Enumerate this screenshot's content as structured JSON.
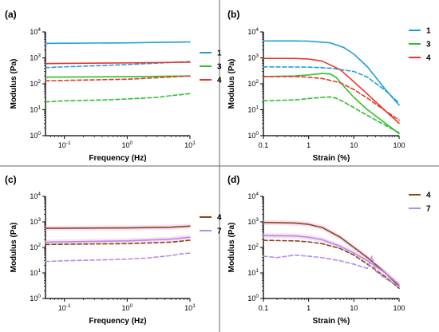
{
  "colors": {
    "blue": "#1ea0dc",
    "green": "#2dbf2d",
    "red": "#e8342a",
    "brown": "#8b4513",
    "purple": "#b58ae8",
    "pink_band": "#f3c4ea",
    "frame": "#000000",
    "divider": "#6a6a6a"
  },
  "chart_data": [
    {
      "panel": "(a)",
      "type": "line",
      "ylabel": "Modulus (Pa)",
      "xlabel": "Frequency (Hz)",
      "xscale": "log",
      "yscale": "log",
      "xlim": [
        0.05,
        10
      ],
      "ylim": [
        1,
        10000
      ],
      "xticks": [
        {
          "v": 0.1,
          "b": "10",
          "e": "-1"
        },
        {
          "v": 1,
          "b": "10",
          "e": "0"
        },
        {
          "v": 10,
          "b": "10",
          "e": "1"
        }
      ],
      "yticks": [
        {
          "v": 1,
          "b": "10",
          "e": "0"
        },
        {
          "v": 10,
          "b": "10",
          "e": "1"
        },
        {
          "v": 100,
          "b": "10",
          "e": "2"
        },
        {
          "v": 1000,
          "b": "10",
          "e": "3"
        },
        {
          "v": 10000,
          "b": "10",
          "e": "4"
        }
      ],
      "legend": [
        {
          "label": "1",
          "color": "blue"
        },
        {
          "label": "3",
          "color": "green"
        },
        {
          "label": "4",
          "color": "red"
        }
      ],
      "legend_position": "right",
      "series": [
        {
          "name": "1",
          "color": "blue",
          "style": "solid",
          "points": [
            [
              0.05,
              3600
            ],
            [
              0.1,
              3650
            ],
            [
              1,
              3800
            ],
            [
              10,
              4100
            ]
          ]
        },
        {
          "name": "1",
          "color": "blue",
          "style": "dashed",
          "points": [
            [
              0.05,
              420
            ],
            [
              0.1,
              450
            ],
            [
              1,
              550
            ],
            [
              10,
              720
            ]
          ]
        },
        {
          "name": "3",
          "color": "green",
          "style": "solid",
          "points": [
            [
              0.05,
              180
            ],
            [
              0.1,
              182
            ],
            [
              1,
              188
            ],
            [
              10,
              200
            ]
          ]
        },
        {
          "name": "3",
          "color": "green",
          "style": "dashed",
          "points": [
            [
              0.05,
              20
            ],
            [
              0.1,
              22
            ],
            [
              0.5,
              24
            ],
            [
              1,
              26
            ],
            [
              3,
              30
            ],
            [
              5,
              35
            ],
            [
              7,
              38
            ],
            [
              10,
              42
            ]
          ]
        },
        {
          "name": "4",
          "color": "red",
          "style": "solid",
          "points": [
            [
              0.05,
              600
            ],
            [
              0.1,
              610
            ],
            [
              1,
              640
            ],
            [
              10,
              680
            ]
          ]
        },
        {
          "name": "4",
          "color": "red",
          "style": "dashed",
          "points": [
            [
              0.05,
              130
            ],
            [
              0.1,
              135
            ],
            [
              1,
              150
            ],
            [
              10,
              200
            ]
          ]
        }
      ]
    },
    {
      "panel": "(b)",
      "type": "line",
      "ylabel": "Modulus (Pa)",
      "xlabel": "Strain (%)",
      "xscale": "log",
      "yscale": "log",
      "xlim": [
        0.1,
        100
      ],
      "ylim": [
        1,
        10000
      ],
      "xticks": [
        {
          "v": 0.1,
          "t": "0.1"
        },
        {
          "v": 1,
          "t": "1"
        },
        {
          "v": 10,
          "t": "10"
        },
        {
          "v": 100,
          "t": "100"
        }
      ],
      "yticks": [
        {
          "v": 1,
          "b": "10",
          "e": "0"
        },
        {
          "v": 10,
          "b": "10",
          "e": "1"
        },
        {
          "v": 100,
          "b": "10",
          "e": "2"
        },
        {
          "v": 1000,
          "b": "10",
          "e": "3"
        },
        {
          "v": 10000,
          "b": "10",
          "e": "4"
        }
      ],
      "legend": [
        {
          "label": "1",
          "color": "blue"
        },
        {
          "label": "3",
          "color": "green"
        },
        {
          "label": "4",
          "color": "red"
        }
      ],
      "legend_position": "top-right",
      "series": [
        {
          "name": "1",
          "color": "blue",
          "style": "solid",
          "points": [
            [
              0.1,
              4500
            ],
            [
              0.5,
              4500
            ],
            [
              1,
              4400
            ],
            [
              3,
              3800
            ],
            [
              6,
              2500
            ],
            [
              10,
              1400
            ],
            [
              20,
              450
            ],
            [
              50,
              60
            ],
            [
              100,
              15
            ]
          ]
        },
        {
          "name": "1",
          "color": "blue",
          "style": "dashed",
          "points": [
            [
              0.1,
              450
            ],
            [
              1,
              440
            ],
            [
              3,
              400
            ],
            [
              10,
              300
            ],
            [
              20,
              180
            ],
            [
              50,
              55
            ],
            [
              100,
              18
            ]
          ]
        },
        {
          "name": "3",
          "color": "green",
          "style": "solid",
          "points": [
            [
              0.1,
              190
            ],
            [
              0.5,
              200
            ],
            [
              1,
              220
            ],
            [
              2,
              250
            ],
            [
              3,
              240
            ],
            [
              4,
              180
            ],
            [
              6,
              80
            ],
            [
              10,
              30
            ],
            [
              20,
              10
            ],
            [
              50,
              3
            ],
            [
              100,
              1.2
            ]
          ]
        },
        {
          "name": "3",
          "color": "green",
          "style": "dashed",
          "points": [
            [
              0.1,
              22
            ],
            [
              0.5,
              24
            ],
            [
              1,
              27
            ],
            [
              2,
              30
            ],
            [
              3,
              31
            ],
            [
              4,
              28
            ],
            [
              6,
              20
            ],
            [
              10,
              12
            ],
            [
              20,
              6
            ],
            [
              50,
              2.5
            ],
            [
              100,
              1.3
            ]
          ]
        },
        {
          "name": "4",
          "color": "red",
          "style": "solid",
          "points": [
            [
              0.1,
              950
            ],
            [
              0.5,
              950
            ],
            [
              1,
              900
            ],
            [
              2,
              750
            ],
            [
              5,
              350
            ],
            [
              10,
              120
            ],
            [
              20,
              40
            ],
            [
              50,
              9
            ],
            [
              100,
              3
            ]
          ]
        },
        {
          "name": "4",
          "color": "red",
          "style": "dashed",
          "points": [
            [
              0.1,
              190
            ],
            [
              0.5,
              190
            ],
            [
              1,
              180
            ],
            [
              2,
              160
            ],
            [
              5,
              110
            ],
            [
              10,
              60
            ],
            [
              20,
              28
            ],
            [
              50,
              9
            ],
            [
              100,
              4
            ]
          ]
        }
      ]
    },
    {
      "panel": "(c)",
      "type": "line",
      "ylabel": "Modulus (Pa)",
      "xlabel": "Frequency (Hz)",
      "xscale": "log",
      "yscale": "log",
      "xlim": [
        0.05,
        10
      ],
      "ylim": [
        1,
        10000
      ],
      "xticks": [
        {
          "v": 0.1,
          "b": "10",
          "e": "-1"
        },
        {
          "v": 1,
          "b": "10",
          "e": "0"
        },
        {
          "v": 10,
          "b": "10",
          "e": "1"
        }
      ],
      "yticks": [
        {
          "v": 1,
          "b": "10",
          "e": "0"
        },
        {
          "v": 10,
          "b": "10",
          "e": "1"
        },
        {
          "v": 100,
          "b": "10",
          "e": "2"
        },
        {
          "v": 1000,
          "b": "10",
          "e": "3"
        },
        {
          "v": 10000,
          "b": "10",
          "e": "4"
        }
      ],
      "legend": [
        {
          "label": "4",
          "color": "brown"
        },
        {
          "label": "7",
          "color": "purple"
        }
      ],
      "legend_position": "right",
      "series": [
        {
          "name": "4",
          "color": "brown",
          "style": "solid",
          "band": true,
          "points": [
            [
              0.05,
              560
            ],
            [
              0.1,
              565
            ],
            [
              1,
              580
            ],
            [
              5,
              620
            ],
            [
              10,
              680
            ]
          ]
        },
        {
          "name": "4",
          "color": "brown",
          "style": "dashed",
          "points": [
            [
              0.05,
              130
            ],
            [
              0.1,
              133
            ],
            [
              1,
              140
            ],
            [
              5,
              160
            ],
            [
              10,
              190
            ]
          ]
        },
        {
          "name": "7",
          "color": "purple",
          "style": "solid",
          "band": true,
          "points": [
            [
              0.05,
              160
            ],
            [
              0.1,
              165
            ],
            [
              1,
              180
            ],
            [
              5,
              210
            ],
            [
              10,
              250
            ]
          ]
        },
        {
          "name": "7",
          "color": "purple",
          "style": "dashed",
          "points": [
            [
              0.05,
              28
            ],
            [
              0.1,
              30
            ],
            [
              0.5,
              33
            ],
            [
              1,
              35
            ],
            [
              2,
              38
            ],
            [
              3,
              42
            ],
            [
              5,
              48
            ],
            [
              7,
              55
            ],
            [
              10,
              60
            ]
          ]
        }
      ]
    },
    {
      "panel": "(d)",
      "type": "line",
      "ylabel": "Modulus (Pa)",
      "xlabel": "Strain (%)",
      "xscale": "log",
      "yscale": "log",
      "xlim": [
        0.1,
        100
      ],
      "ylim": [
        1,
        10000
      ],
      "xticks": [
        {
          "v": 0.1,
          "t": "0.1"
        },
        {
          "v": 1,
          "t": "1"
        },
        {
          "v": 10,
          "t": "10"
        },
        {
          "v": 100,
          "t": "100"
        }
      ],
      "yticks": [
        {
          "v": 1,
          "b": "10",
          "e": "0"
        },
        {
          "v": 10,
          "b": "10",
          "e": "1"
        },
        {
          "v": 100,
          "b": "10",
          "e": "2"
        },
        {
          "v": 1000,
          "b": "10",
          "e": "3"
        },
        {
          "v": 10000,
          "b": "10",
          "e": "4"
        }
      ],
      "legend": [
        {
          "label": "4",
          "color": "brown"
        },
        {
          "label": "7",
          "color": "purple"
        }
      ],
      "legend_position": "top-right",
      "series": [
        {
          "name": "4",
          "color": "brown",
          "style": "solid",
          "band": true,
          "points": [
            [
              0.1,
              950
            ],
            [
              0.5,
              900
            ],
            [
              1,
              800
            ],
            [
              2,
              600
            ],
            [
              5,
              250
            ],
            [
              10,
              100
            ],
            [
              20,
              40
            ],
            [
              50,
              10
            ],
            [
              100,
              3
            ]
          ]
        },
        {
          "name": "4",
          "color": "brown",
          "style": "dashed",
          "points": [
            [
              0.1,
              190
            ],
            [
              0.5,
              180
            ],
            [
              1,
              165
            ],
            [
              2,
              140
            ],
            [
              5,
              90
            ],
            [
              10,
              50
            ],
            [
              20,
              22
            ],
            [
              50,
              7
            ],
            [
              100,
              2.5
            ]
          ]
        },
        {
          "name": "7",
          "color": "purple",
          "style": "solid",
          "band": true,
          "points": [
            [
              0.1,
              290
            ],
            [
              0.5,
              280
            ],
            [
              1,
              250
            ],
            [
              2,
              200
            ],
            [
              5,
              110
            ],
            [
              10,
              60
            ],
            [
              20,
              30
            ],
            [
              50,
              10
            ],
            [
              100,
              3.5
            ]
          ]
        },
        {
          "name": "7",
          "color": "purple",
          "style": "dashed",
          "points": [
            [
              0.1,
              45
            ],
            [
              0.2,
              40
            ],
            [
              0.5,
              50
            ],
            [
              1,
              45
            ],
            [
              2,
              40
            ],
            [
              3,
              35
            ],
            [
              5,
              30
            ],
            [
              10,
              22
            ],
            [
              20,
              15
            ],
            [
              25,
              45
            ],
            [
              30,
              12
            ],
            [
              50,
              6
            ],
            [
              100,
              3
            ]
          ]
        }
      ]
    }
  ]
}
